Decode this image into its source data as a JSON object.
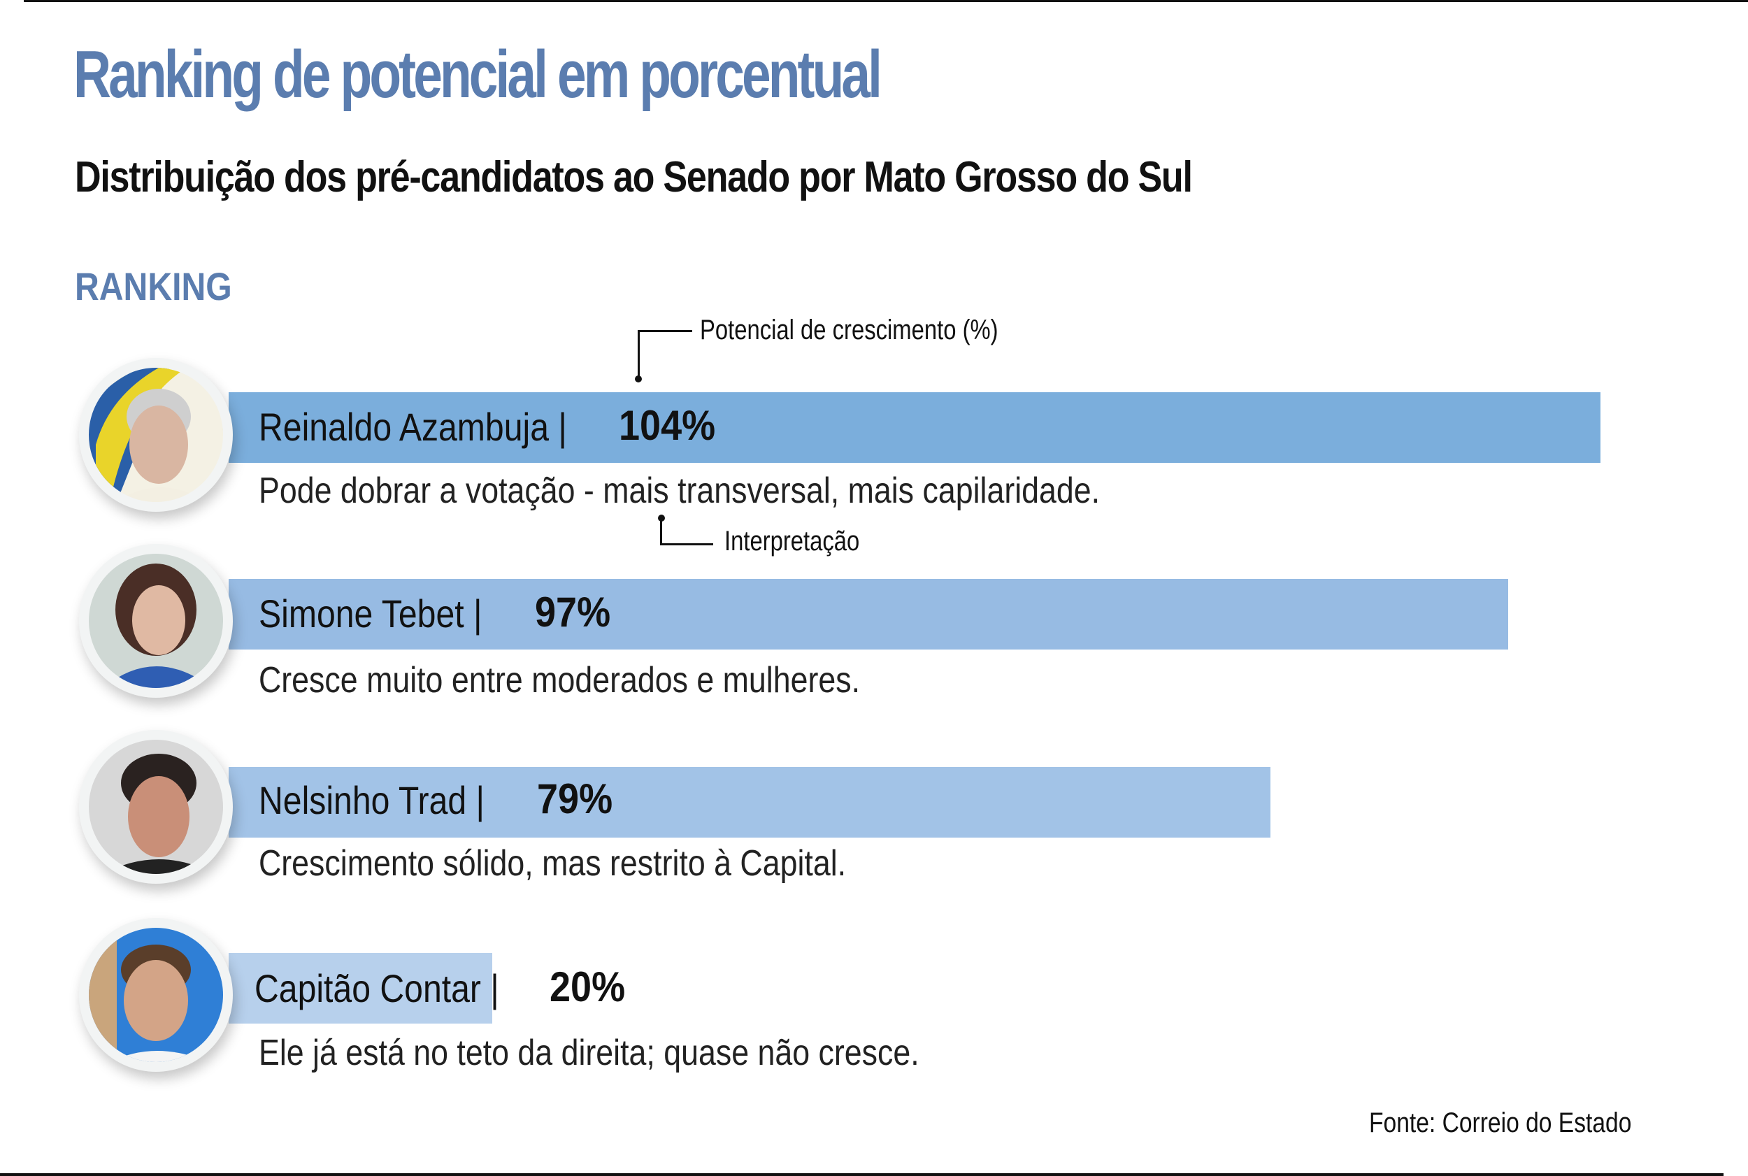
{
  "title": "Ranking de potencial em porcentual",
  "subtitle": "Distribuição dos pré-candidatos ao Senado por Mato Grosso do Sul",
  "section_label": "RANKING",
  "annotations": {
    "growth_label": "Potencial de crescimento (%)",
    "interpretation_label": "Interpretação"
  },
  "source": "Fonte: Correio do Estado",
  "colors": {
    "title": "#5b7daf",
    "bars": [
      "#7baedc",
      "#97bbe3",
      "#a2c3e7",
      "#b7d0ec"
    ]
  },
  "chart_data": {
    "type": "bar",
    "orientation": "horizontal",
    "title": "Ranking de potencial em porcentual",
    "xlabel": "Potencial de crescimento (%)",
    "ylabel": "",
    "categories": [
      "Reinaldo Azambuja",
      "Simone Tebet",
      "Nelsinho Trad",
      "Capitão Contar"
    ],
    "values": [
      104,
      97,
      79,
      20
    ],
    "value_labels": [
      "104%",
      "97%",
      "79%",
      "20%"
    ],
    "interpretations": [
      "Pode dobrar a votação - mais transversal, mais capilaridade.",
      "Cresce muito entre moderados e mulheres.",
      "Crescimento sólido, mas restrito à Capital.",
      "Ele já está no teto da direita; quase não cresce."
    ],
    "xlim": [
      0,
      110
    ],
    "grid": false
  },
  "candidates": [
    {
      "name": "Reinaldo Azambuja |",
      "pct": "104%",
      "desc": "Pode dobrar a votação - mais transversal, mais capilaridade.",
      "photo": "portrait-older-man-gray-hair"
    },
    {
      "name": "Simone Tebet |",
      "pct": "97%",
      "desc": "Cresce muito entre moderados e mulheres.",
      "photo": "portrait-woman-dark-hair"
    },
    {
      "name": "Nelsinho Trad |",
      "pct": "79%",
      "desc": "Crescimento sólido, mas restrito à Capital.",
      "photo": "portrait-man-dark-hair"
    },
    {
      "name": "Capitão Contar |",
      "pct": "20%",
      "desc": "Ele já está no teto da direita; quase não cresce.",
      "photo": "portrait-young-man-smiling"
    }
  ]
}
